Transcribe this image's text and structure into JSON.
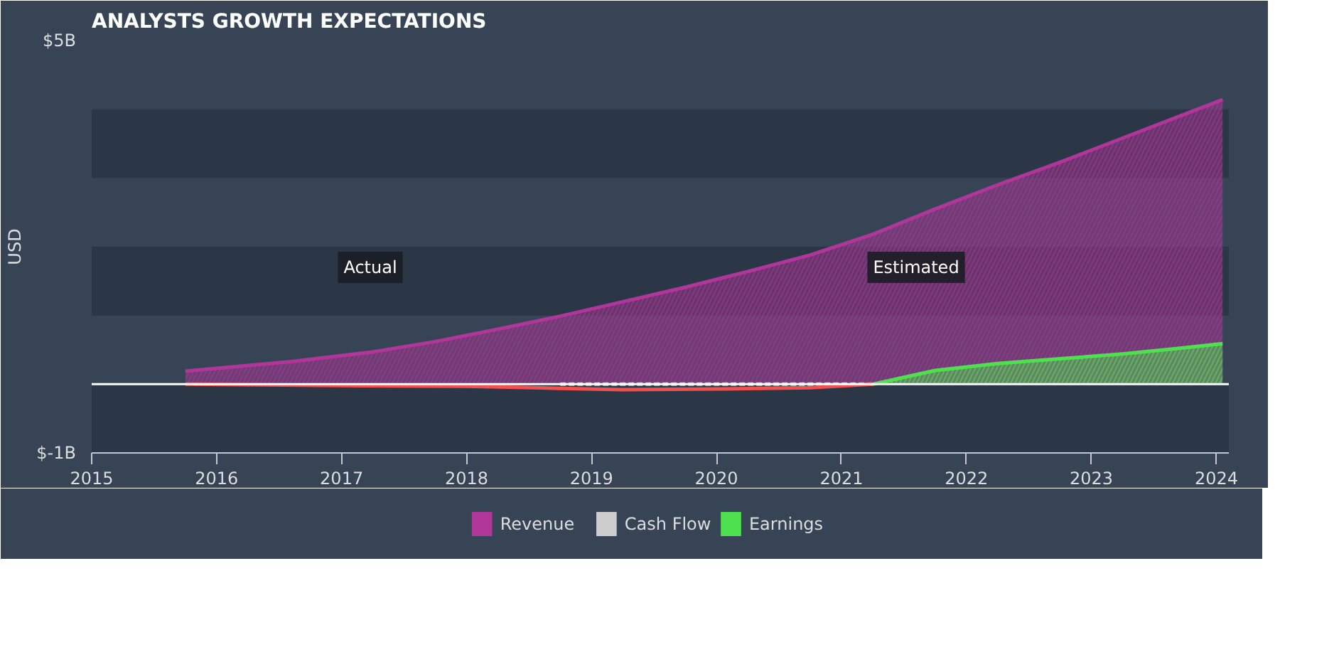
{
  "chart_data": {
    "type": "area",
    "title": "ANALYSTS GROWTH EXPECTATIONS",
    "ylabel": "USD",
    "series": [
      {
        "name": "Revenue",
        "color": "#b0369a",
        "x": [
          2015.75,
          2016.6,
          2017.25,
          2017.75,
          2018.25,
          2018.75,
          2019.25,
          2019.75,
          2020.25,
          2020.75,
          2021.25,
          2021.75,
          2022.25,
          2022.75,
          2023.25,
          2023.75,
          2024.05
        ],
        "values": [
          0.19,
          0.33,
          0.47,
          0.62,
          0.8,
          0.99,
          1.2,
          1.41,
          1.64,
          1.88,
          2.18,
          2.55,
          2.9,
          3.23,
          3.58,
          3.93,
          4.14
        ]
      },
      {
        "name": "Cash Flow",
        "color": "#cccccc",
        "type": "line",
        "line_style": "dashed",
        "x": [
          2018.75,
          2019.5,
          2020.25,
          2021.25
        ],
        "values": [
          0,
          0,
          0,
          0
        ]
      },
      {
        "color": "#f0504f",
        "type": "line",
        "x": [
          2015.75,
          2017.0,
          2018.0,
          2018.75,
          2019.25,
          2020.0,
          2020.75,
          2021.25
        ],
        "values": [
          0.0,
          -0.02,
          -0.03,
          -0.06,
          -0.08,
          -0.07,
          -0.05,
          0.0
        ]
      },
      {
        "name": "Earnings",
        "color": "#4fe04f",
        "x": [
          2021.25,
          2021.75,
          2022.25,
          2022.75,
          2023.25,
          2023.75,
          2024.05
        ],
        "values": [
          0.0,
          0.2,
          0.3,
          0.37,
          0.44,
          0.53,
          0.59
        ]
      }
    ],
    "xlim": [
      2015,
      2024.1
    ],
    "xticks": [
      2015,
      2016,
      2017,
      2018,
      2019,
      2020,
      2021,
      2022,
      2023,
      2024
    ],
    "ylim": [
      -1,
      5
    ],
    "yticks": [
      {
        "value": 5,
        "label": "$5B"
      },
      {
        "value": -1,
        "label": "$-1B"
      }
    ],
    "ref_lines": [
      {
        "axis": "y",
        "value": 0,
        "color": "#ffffff"
      }
    ],
    "bands": [
      {
        "axis": "y",
        "from": 3,
        "to": 4,
        "color": "#2b3646"
      },
      {
        "axis": "y",
        "from": 1,
        "to": 2,
        "color": "#2b3646"
      },
      {
        "axis": "y",
        "from": -1,
        "to": 0,
        "color": "#2b3646"
      }
    ],
    "annotations": [
      "Actual",
      "Estimated"
    ],
    "grid": false,
    "legend": "bottom"
  }
}
